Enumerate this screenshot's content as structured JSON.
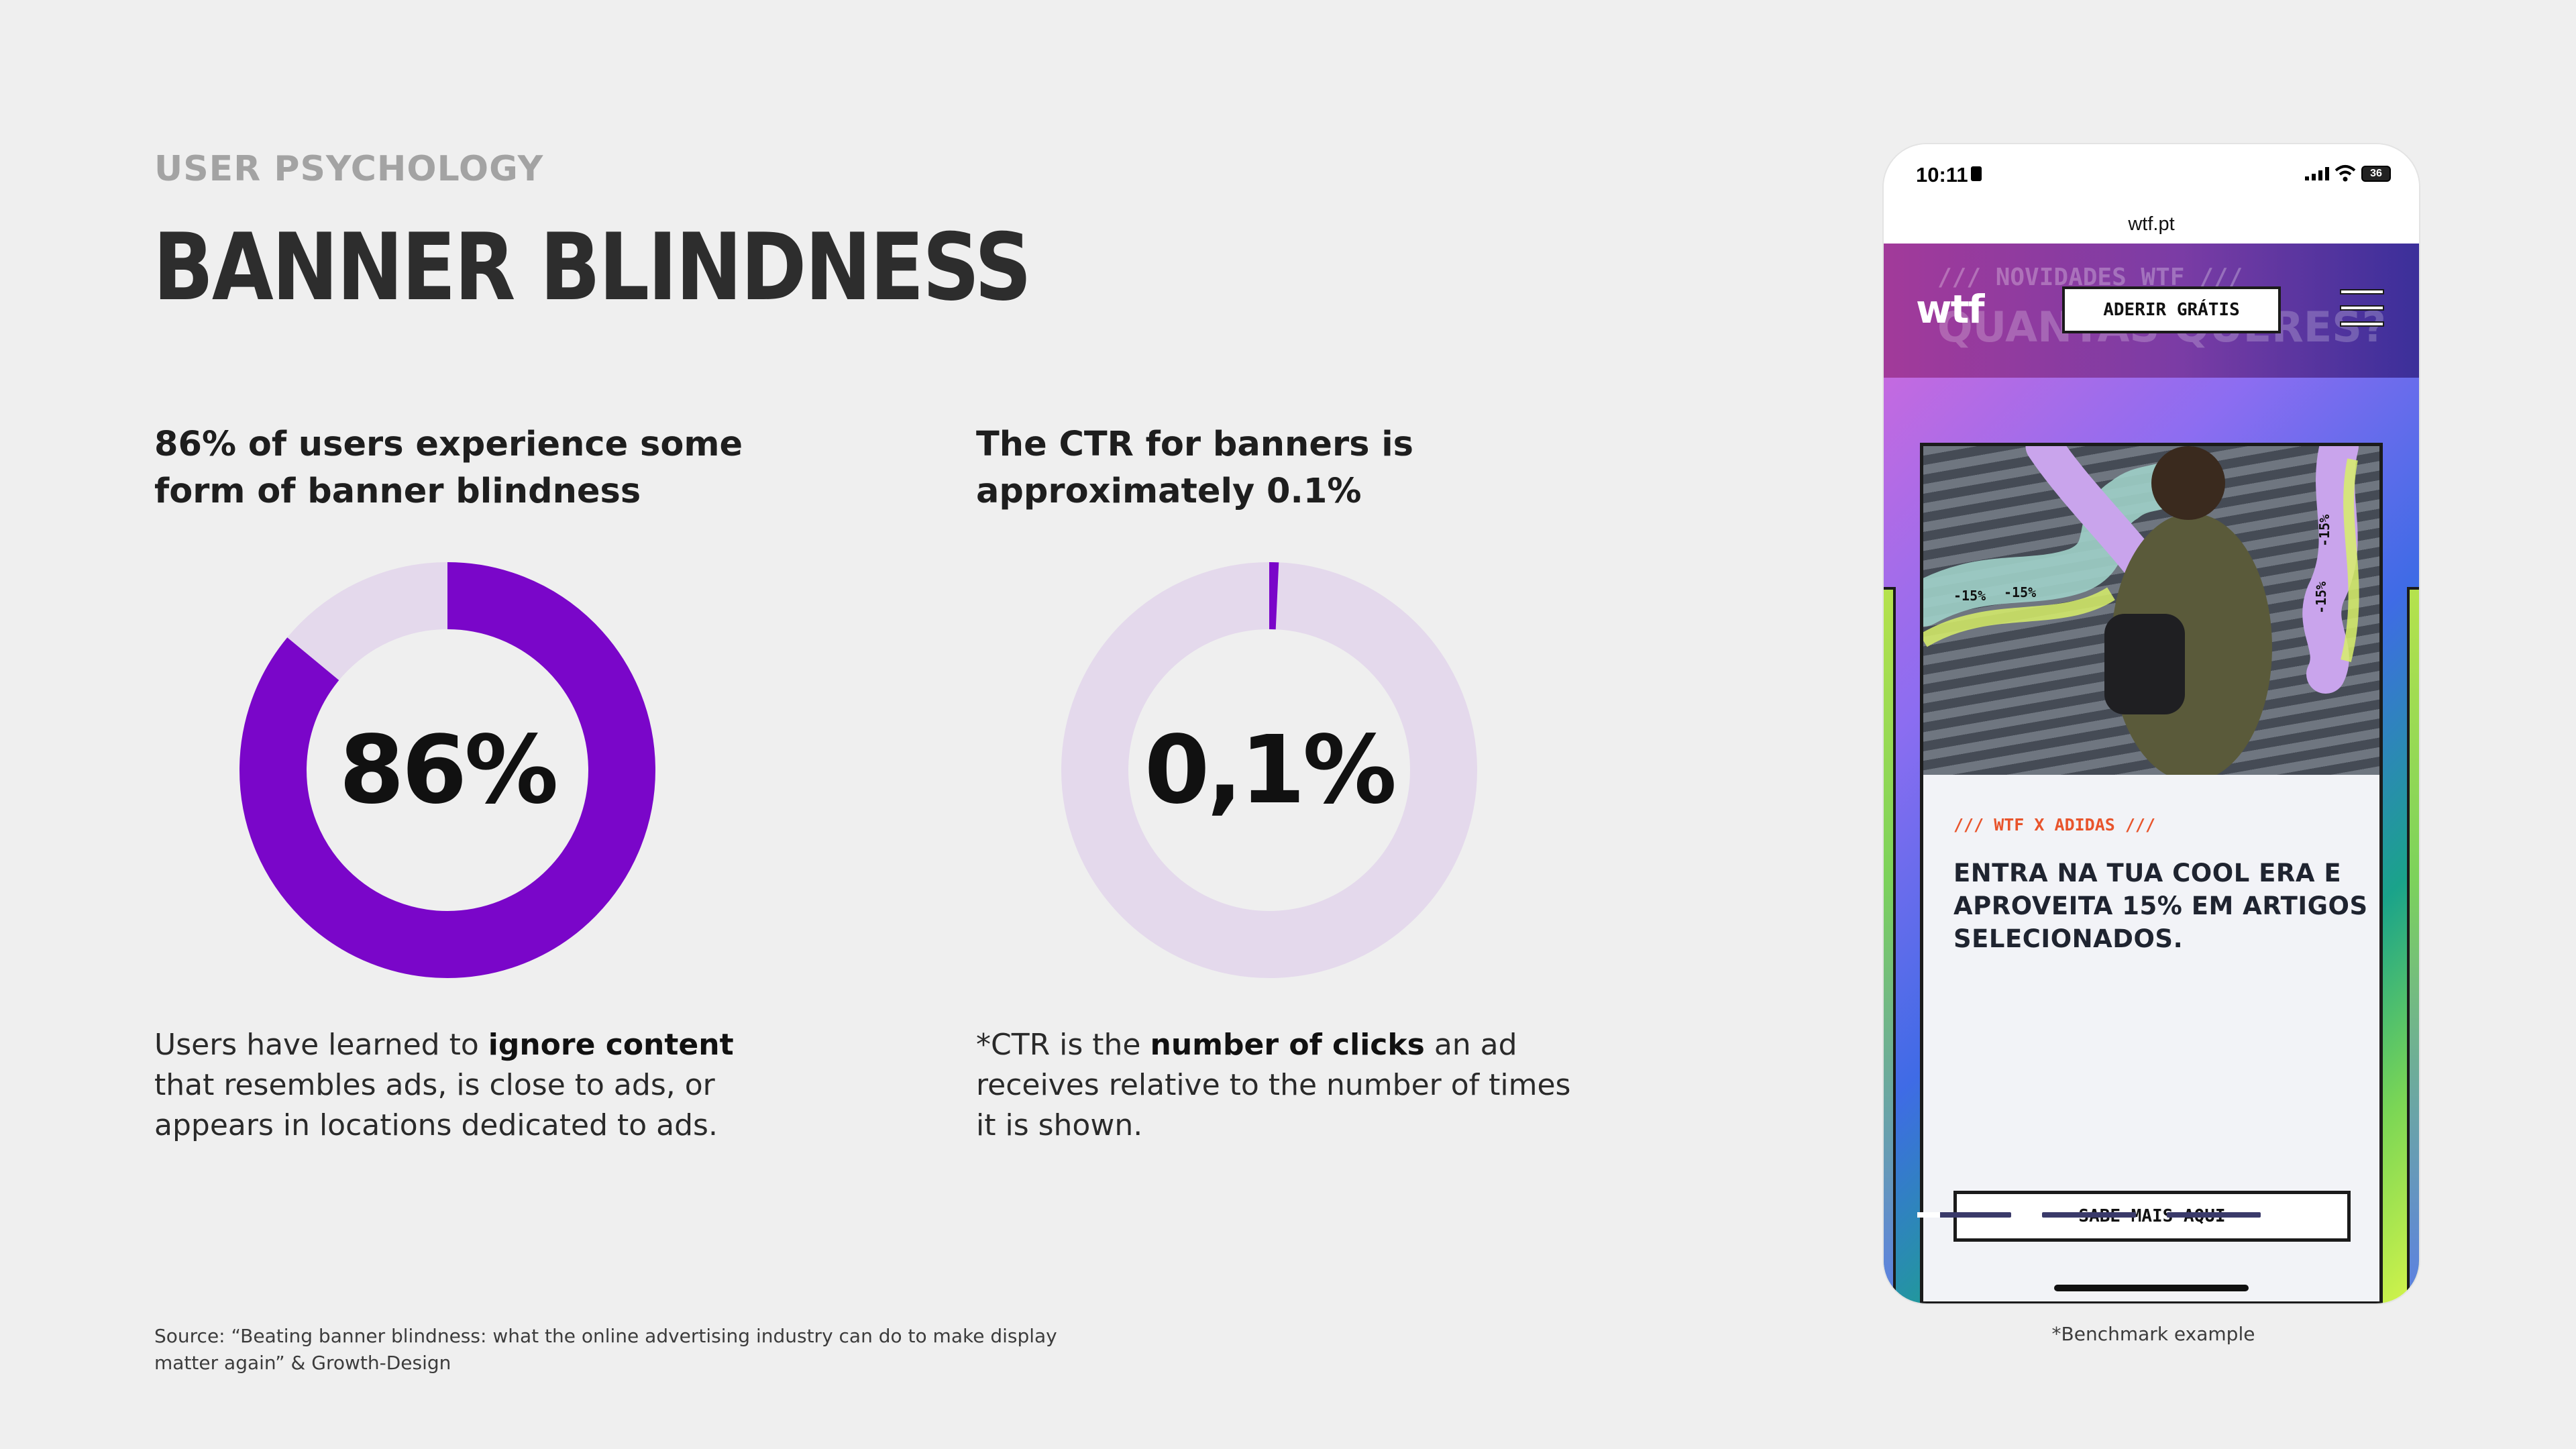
{
  "eyebrow": "USER PSYCHOLOGY",
  "title": "BANNER BLINDNESS",
  "stats": [
    {
      "heading": "86% of users experience some form of banner blindness",
      "value_label": "86%",
      "percent": 86,
      "body_pre": "Users have learned to ",
      "body_bold": "ignore content",
      "body_post": " that resembles ads, is close to ads, or appears in locations dedicated to ads."
    },
    {
      "heading": "The CTR for banners is approximately 0.1%",
      "value_label": "0,1%",
      "percent": 0.1,
      "body_pre": "*CTR is the ",
      "body_bold": "number of clicks",
      "body_post": " an ad receives relative to the number of times it is shown."
    }
  ],
  "colors": {
    "accent": "#7a06c9",
    "track": "#e4d9ec",
    "background": "#efefef",
    "promo_tag": "#e8542c"
  },
  "source": "Source: “Beating banner blindness: what the online advertising industry can do to make display matter again” & Growth-Design",
  "caption": "*Benchmark example",
  "phone": {
    "time": "10:11",
    "battery": "36",
    "url": "wtf.pt",
    "marquee_top": "/// NOVIDADES WTF ///",
    "marquee_bottom": "QUANTAS QUERES?",
    "logo": "wtf",
    "join_button": "ADERIR GRÁTIS",
    "promo_tag": "/// WTF X ADIDAS ///",
    "promo_headline": "ENTRA NA TUA COOL ERA E APROVEITA 15% EM ARTIGOS SELECIONADOS.",
    "cta": "SABE MAIS AQUI",
    "discount_label": "-15%",
    "icons": [
      "lock-icon",
      "signal-icon",
      "wifi-icon",
      "battery-icon",
      "menu-icon"
    ]
  }
}
